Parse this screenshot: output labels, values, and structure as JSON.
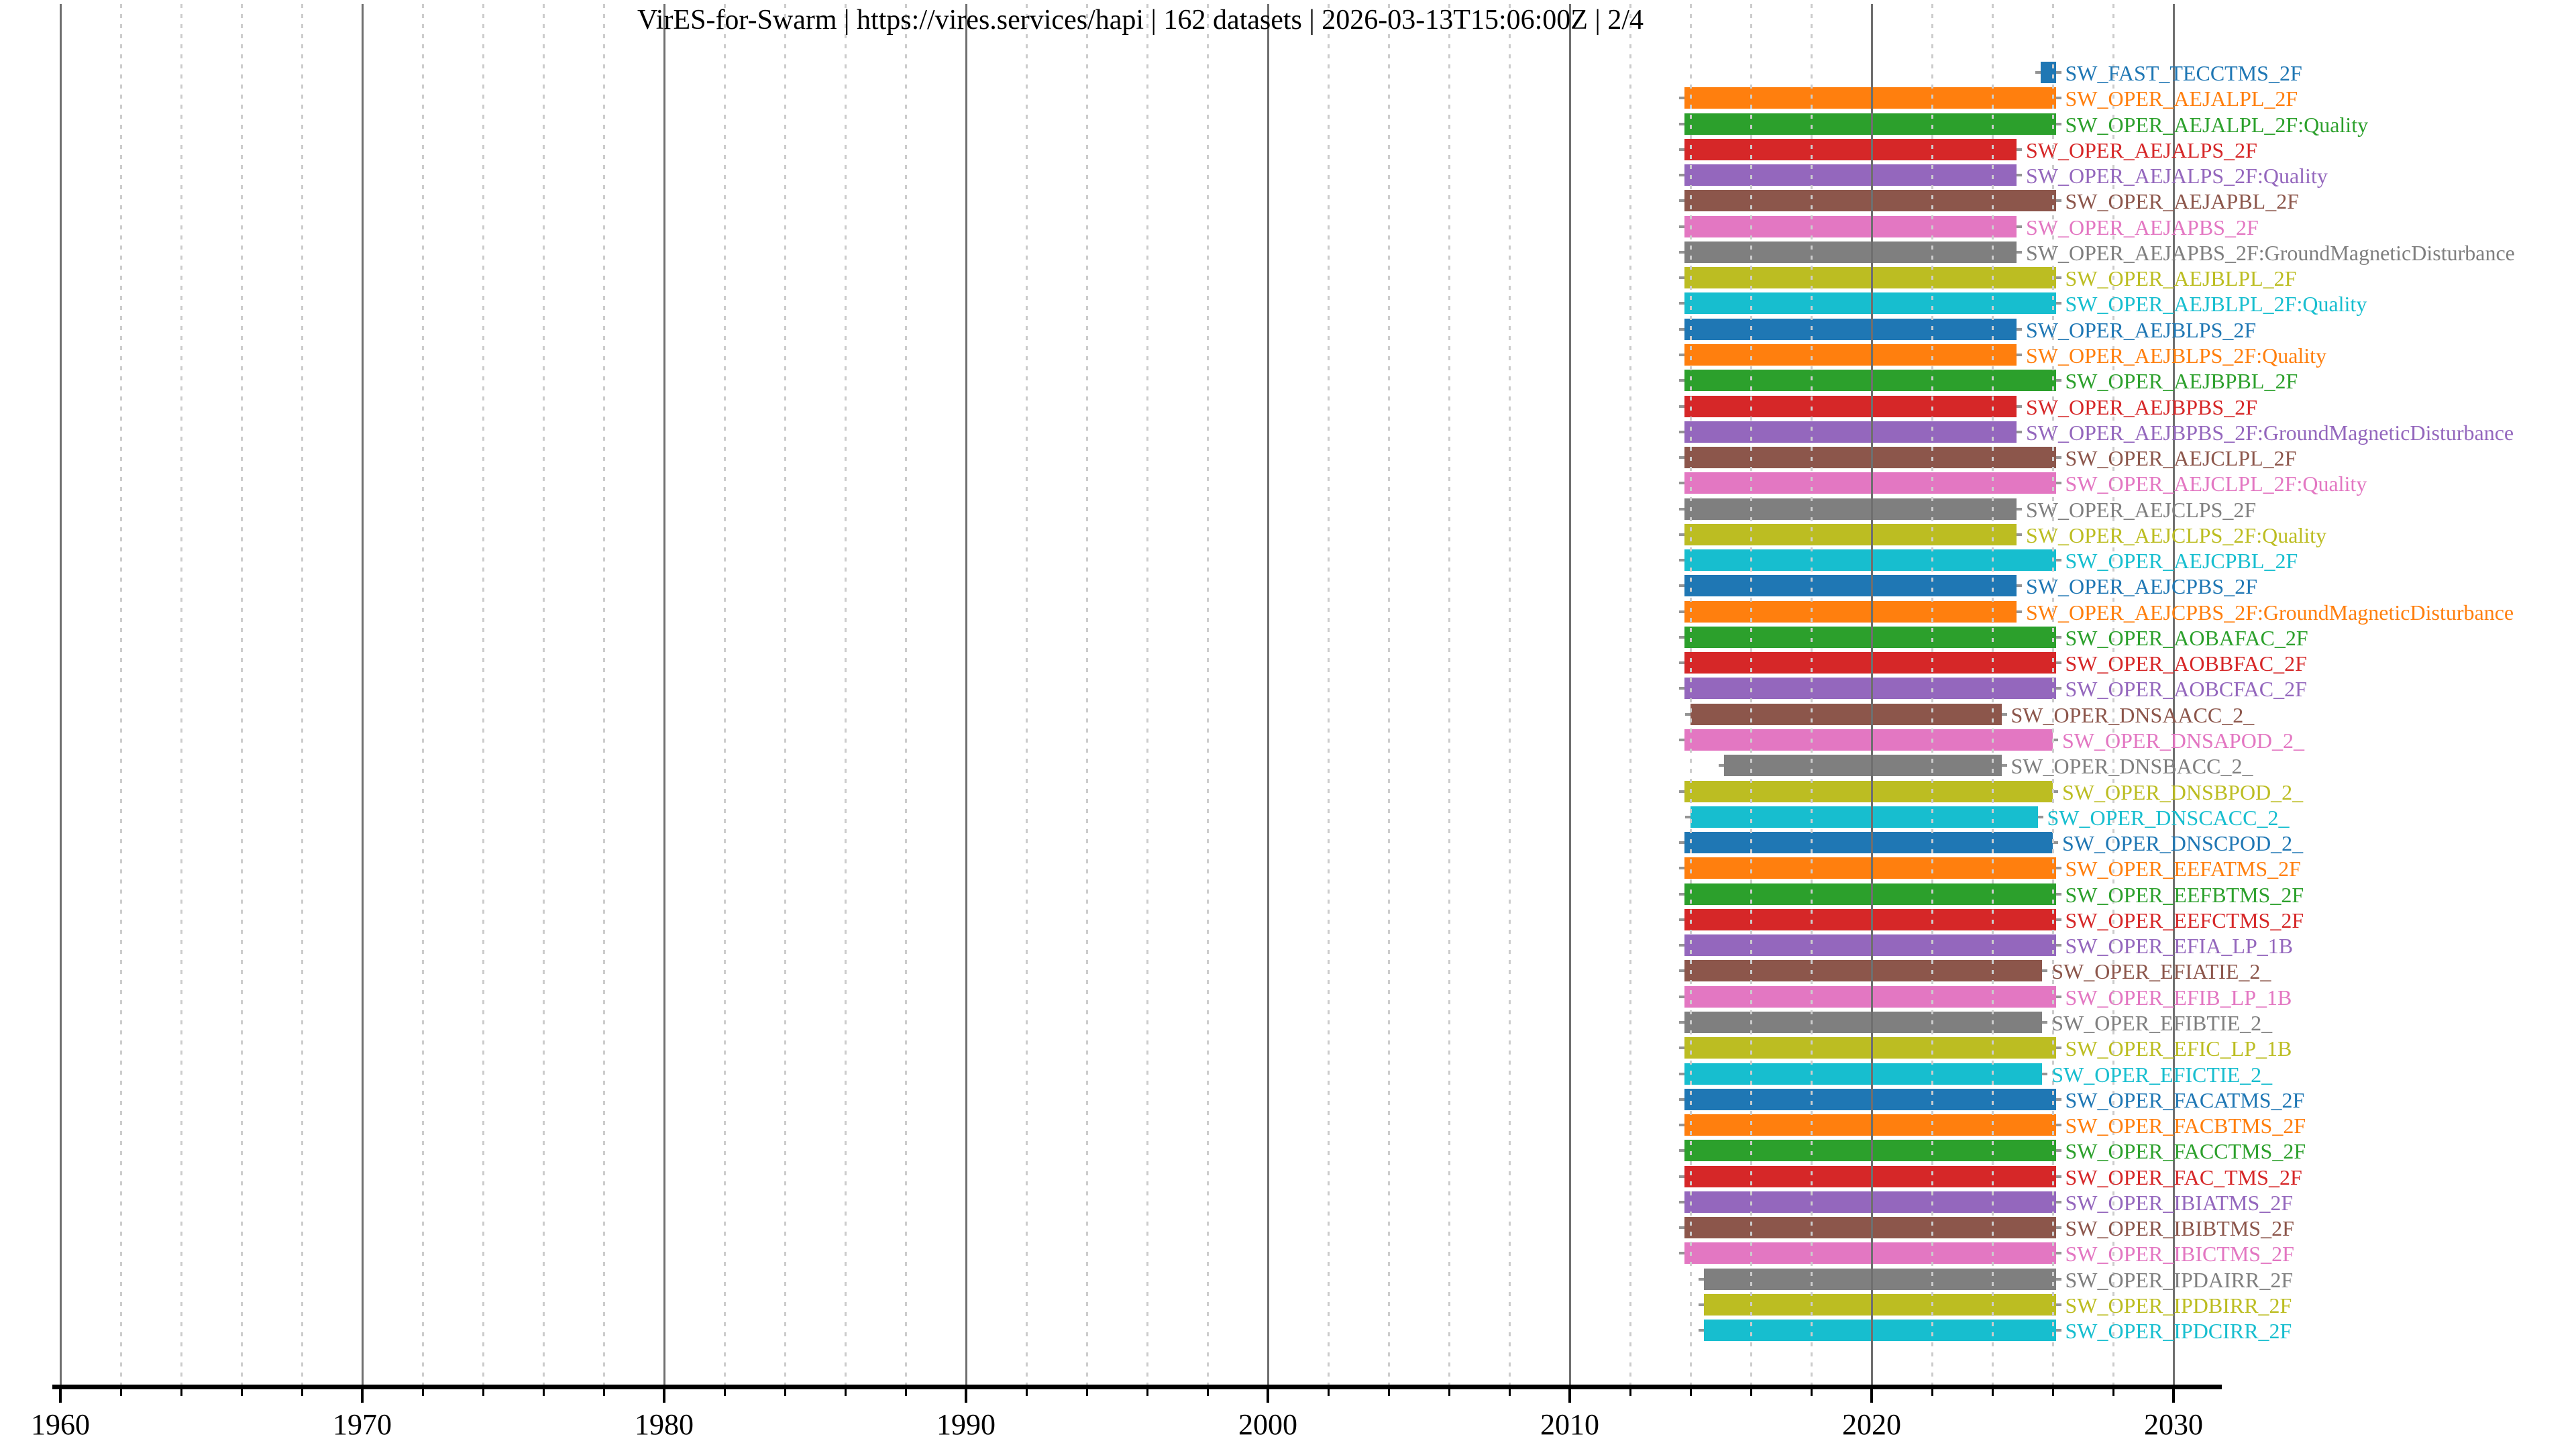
{
  "title": "VirES-for-Swarm | https://vires.services/hapi | 162 datasets | 2026-03-13T15:06:00Z | 2/4",
  "palette": {
    "blue": "#1f77b4",
    "orange": "#ff7f0e",
    "green": "#2ca02c",
    "red": "#d62728",
    "purple": "#9467bd",
    "brown": "#8c564b",
    "pink": "#e377c2",
    "gray": "#7f7f7f",
    "olive": "#bcbd22",
    "cyan": "#17becf"
  },
  "axis": {
    "x_min": 1960,
    "x_max": 2030,
    "major_step": 10,
    "minor_step": 2,
    "grid": "on",
    "tick_labels": [
      "1960",
      "1970",
      "1980",
      "1990",
      "2000",
      "2010",
      "2020",
      "2030"
    ]
  },
  "chart_data": {
    "type": "bar",
    "orientation": "horizontal",
    "title": "VirES-for-Swarm | https://vires.services/hapi | 162 datasets | 2026-03-13T15:06:00Z | 2/4",
    "xlabel": "",
    "ylabel": "",
    "xlim": [
      1959.8,
      2031.6
    ],
    "x_unit": "year",
    "legend": "labels drawn right of each bar in bar color",
    "entries": [
      {
        "label": "SW_FAST_TECCTMS_2F",
        "color": "blue",
        "start": 2025.6,
        "end": 2026.1
      },
      {
        "label": "SW_OPER_AEJALPL_2F",
        "color": "orange",
        "start": 2013.8,
        "end": 2026.1
      },
      {
        "label": "SW_OPER_AEJALPL_2F:Quality",
        "color": "green",
        "start": 2013.8,
        "end": 2026.1
      },
      {
        "label": "SW_OPER_AEJALPS_2F",
        "color": "red",
        "start": 2013.8,
        "end": 2024.8
      },
      {
        "label": "SW_OPER_AEJALPS_2F:Quality",
        "color": "purple",
        "start": 2013.8,
        "end": 2024.8
      },
      {
        "label": "SW_OPER_AEJAPBL_2F",
        "color": "brown",
        "start": 2013.8,
        "end": 2026.1
      },
      {
        "label": "SW_OPER_AEJAPBS_2F",
        "color": "pink",
        "start": 2013.8,
        "end": 2024.8
      },
      {
        "label": "SW_OPER_AEJAPBS_2F:GroundMagneticDisturbance",
        "color": "gray",
        "start": 2013.8,
        "end": 2024.8
      },
      {
        "label": "SW_OPER_AEJBLPL_2F",
        "color": "olive",
        "start": 2013.8,
        "end": 2026.1
      },
      {
        "label": "SW_OPER_AEJBLPL_2F:Quality",
        "color": "cyan",
        "start": 2013.8,
        "end": 2026.1
      },
      {
        "label": "SW_OPER_AEJBLPS_2F",
        "color": "blue",
        "start": 2013.8,
        "end": 2024.8
      },
      {
        "label": "SW_OPER_AEJBLPS_2F:Quality",
        "color": "orange",
        "start": 2013.8,
        "end": 2024.8
      },
      {
        "label": "SW_OPER_AEJBPBL_2F",
        "color": "green",
        "start": 2013.8,
        "end": 2026.1
      },
      {
        "label": "SW_OPER_AEJBPBS_2F",
        "color": "red",
        "start": 2013.8,
        "end": 2024.8
      },
      {
        "label": "SW_OPER_AEJBPBS_2F:GroundMagneticDisturbance",
        "color": "purple",
        "start": 2013.8,
        "end": 2024.8
      },
      {
        "label": "SW_OPER_AEJCLPL_2F",
        "color": "brown",
        "start": 2013.8,
        "end": 2026.1
      },
      {
        "label": "SW_OPER_AEJCLPL_2F:Quality",
        "color": "pink",
        "start": 2013.8,
        "end": 2026.1
      },
      {
        "label": "SW_OPER_AEJCLPS_2F",
        "color": "gray",
        "start": 2013.8,
        "end": 2024.8
      },
      {
        "label": "SW_OPER_AEJCLPS_2F:Quality",
        "color": "olive",
        "start": 2013.8,
        "end": 2024.8
      },
      {
        "label": "SW_OPER_AEJCPBL_2F",
        "color": "cyan",
        "start": 2013.8,
        "end": 2026.1
      },
      {
        "label": "SW_OPER_AEJCPBS_2F",
        "color": "blue",
        "start": 2013.8,
        "end": 2024.8
      },
      {
        "label": "SW_OPER_AEJCPBS_2F:GroundMagneticDisturbance",
        "color": "orange",
        "start": 2013.8,
        "end": 2024.8
      },
      {
        "label": "SW_OPER_AOBAFAC_2F",
        "color": "green",
        "start": 2013.8,
        "end": 2026.1
      },
      {
        "label": "SW_OPER_AOBBFAC_2F",
        "color": "red",
        "start": 2013.8,
        "end": 2026.1
      },
      {
        "label": "SW_OPER_AOBCFAC_2F",
        "color": "purple",
        "start": 2013.8,
        "end": 2026.1
      },
      {
        "label": "SW_OPER_DNSAACC_2_",
        "color": "brown",
        "start": 2014.0,
        "end": 2024.3
      },
      {
        "label": "SW_OPER_DNSAPOD_2_",
        "color": "pink",
        "start": 2013.8,
        "end": 2026.0
      },
      {
        "label": "SW_OPER_DNSBACC_2_",
        "color": "gray",
        "start": 2015.1,
        "end": 2024.3
      },
      {
        "label": "SW_OPER_DNSBPOD_2_",
        "color": "olive",
        "start": 2013.8,
        "end": 2026.0
      },
      {
        "label": "SW_OPER_DNSCACC_2_",
        "color": "cyan",
        "start": 2014.0,
        "end": 2025.5
      },
      {
        "label": "SW_OPER_DNSCPOD_2_",
        "color": "blue",
        "start": 2013.8,
        "end": 2026.0
      },
      {
        "label": "SW_OPER_EEFATMS_2F",
        "color": "orange",
        "start": 2013.8,
        "end": 2026.1
      },
      {
        "label": "SW_OPER_EEFBTMS_2F",
        "color": "green",
        "start": 2013.8,
        "end": 2026.1
      },
      {
        "label": "SW_OPER_EEFCTMS_2F",
        "color": "red",
        "start": 2013.8,
        "end": 2026.1
      },
      {
        "label": "SW_OPER_EFIA_LP_1B",
        "color": "purple",
        "start": 2013.8,
        "end": 2026.1
      },
      {
        "label": "SW_OPER_EFIATIE_2_",
        "color": "brown",
        "start": 2013.8,
        "end": 2025.65
      },
      {
        "label": "SW_OPER_EFIB_LP_1B",
        "color": "pink",
        "start": 2013.8,
        "end": 2026.1
      },
      {
        "label": "SW_OPER_EFIBTIE_2_",
        "color": "gray",
        "start": 2013.8,
        "end": 2025.65
      },
      {
        "label": "SW_OPER_EFIC_LP_1B",
        "color": "olive",
        "start": 2013.8,
        "end": 2026.1
      },
      {
        "label": "SW_OPER_EFICTIE_2_",
        "color": "cyan",
        "start": 2013.8,
        "end": 2025.65
      },
      {
        "label": "SW_OPER_FACATMS_2F",
        "color": "blue",
        "start": 2013.8,
        "end": 2026.1
      },
      {
        "label": "SW_OPER_FACBTMS_2F",
        "color": "orange",
        "start": 2013.8,
        "end": 2026.1
      },
      {
        "label": "SW_OPER_FACCTMS_2F",
        "color": "green",
        "start": 2013.8,
        "end": 2026.1
      },
      {
        "label": "SW_OPER_FAC_TMS_2F",
        "color": "red",
        "start": 2013.8,
        "end": 2026.1
      },
      {
        "label": "SW_OPER_IBIATMS_2F",
        "color": "purple",
        "start": 2013.8,
        "end": 2026.1
      },
      {
        "label": "SW_OPER_IBIBTMS_2F",
        "color": "brown",
        "start": 2013.8,
        "end": 2026.1
      },
      {
        "label": "SW_OPER_IBICTMS_2F",
        "color": "pink",
        "start": 2013.8,
        "end": 2026.1
      },
      {
        "label": "SW_OPER_IPDAIRR_2F",
        "color": "gray",
        "start": 2014.45,
        "end": 2026.1
      },
      {
        "label": "SW_OPER_IPDBIRR_2F",
        "color": "olive",
        "start": 2014.45,
        "end": 2026.1
      },
      {
        "label": "SW_OPER_IPDCIRR_2F",
        "color": "cyan",
        "start": 2014.45,
        "end": 2026.1
      }
    ]
  }
}
